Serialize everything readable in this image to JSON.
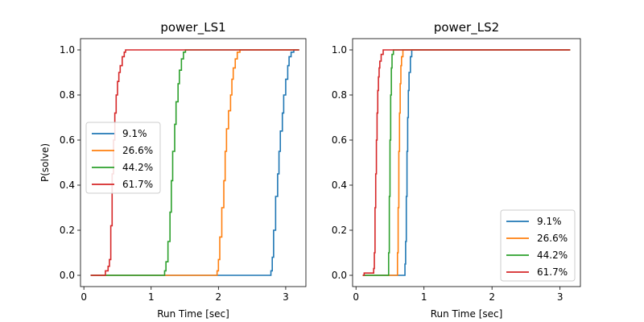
{
  "chart_data": [
    {
      "type": "line",
      "title": "power_LS1",
      "xlabel": "Run Time [sec]",
      "ylabel": "P(solve)",
      "xlim": [
        -0.05,
        3.3
      ],
      "ylim": [
        -0.05,
        1.05
      ],
      "xticks": [
        "0",
        "1",
        "2",
        "3"
      ],
      "yticks": [
        "0.0",
        "0.2",
        "0.4",
        "0.6",
        "0.8",
        "1.0"
      ],
      "legend_position": "center-left",
      "series": [
        {
          "name": "9.1%",
          "color": "#1f77b4",
          "x": [
            0.1,
            2.75,
            2.78,
            2.8,
            2.82,
            2.85,
            2.88,
            2.9,
            2.92,
            2.95,
            2.97,
            3.0,
            3.03,
            3.05,
            3.08,
            3.12,
            3.2
          ],
          "y": [
            0.0,
            0.0,
            0.02,
            0.08,
            0.2,
            0.35,
            0.45,
            0.55,
            0.64,
            0.72,
            0.8,
            0.87,
            0.93,
            0.97,
            0.99,
            1.0,
            1.0
          ]
        },
        {
          "name": "26.6%",
          "color": "#ff7f0e",
          "x": [
            0.1,
            1.95,
            1.98,
            2.0,
            2.02,
            2.05,
            2.08,
            2.1,
            2.12,
            2.15,
            2.18,
            2.2,
            2.22,
            2.25,
            2.28,
            2.32,
            3.2
          ],
          "y": [
            0.0,
            0.0,
            0.02,
            0.07,
            0.17,
            0.3,
            0.42,
            0.55,
            0.65,
            0.73,
            0.8,
            0.87,
            0.92,
            0.96,
            0.99,
            1.0,
            1.0
          ]
        },
        {
          "name": "44.2%",
          "color": "#2ca02c",
          "x": [
            0.1,
            1.17,
            1.2,
            1.22,
            1.25,
            1.28,
            1.3,
            1.32,
            1.35,
            1.37,
            1.4,
            1.42,
            1.45,
            1.48,
            1.51,
            3.2
          ],
          "y": [
            0.0,
            0.0,
            0.02,
            0.06,
            0.15,
            0.28,
            0.42,
            0.55,
            0.67,
            0.77,
            0.85,
            0.91,
            0.96,
            0.99,
            1.0,
            1.0
          ]
        },
        {
          "name": "61.7%",
          "color": "#d62728",
          "x": [
            0.1,
            0.3,
            0.32,
            0.36,
            0.38,
            0.4,
            0.42,
            0.44,
            0.46,
            0.48,
            0.5,
            0.52,
            0.54,
            0.57,
            0.6,
            0.62,
            3.2
          ],
          "y": [
            0.0,
            0.0,
            0.02,
            0.04,
            0.07,
            0.22,
            0.45,
            0.6,
            0.72,
            0.8,
            0.86,
            0.9,
            0.93,
            0.97,
            0.99,
            1.0,
            1.0
          ]
        }
      ]
    },
    {
      "type": "line",
      "title": "power_LS2",
      "xlabel": "Run Time [sec]",
      "ylabel": "",
      "xlim": [
        -0.05,
        3.3
      ],
      "ylim": [
        -0.05,
        1.05
      ],
      "xticks": [
        "0",
        "1",
        "2",
        "3"
      ],
      "yticks": [
        "0.0",
        "0.2",
        "0.4",
        "0.6",
        "0.8",
        "1.0"
      ],
      "legend_position": "lower-right",
      "series": [
        {
          "name": "9.1%",
          "color": "#1f77b4",
          "x": [
            0.1,
            0.7,
            0.72,
            0.73,
            0.74,
            0.75,
            0.76,
            0.77,
            0.78,
            0.8,
            0.82,
            3.15
          ],
          "y": [
            0.0,
            0.0,
            0.05,
            0.15,
            0.35,
            0.55,
            0.7,
            0.82,
            0.9,
            0.97,
            1.0,
            1.0
          ]
        },
        {
          "name": "26.6%",
          "color": "#ff7f0e",
          "x": [
            0.1,
            0.6,
            0.61,
            0.62,
            0.63,
            0.64,
            0.65,
            0.66,
            0.67,
            0.69,
            3.15
          ],
          "y": [
            0.0,
            0.0,
            0.1,
            0.3,
            0.55,
            0.72,
            0.85,
            0.93,
            0.97,
            1.0,
            1.0
          ]
        },
        {
          "name": "44.2%",
          "color": "#2ca02c",
          "x": [
            0.1,
            0.47,
            0.48,
            0.49,
            0.5,
            0.51,
            0.52,
            0.53,
            0.55,
            3.15
          ],
          "y": [
            0.0,
            0.0,
            0.1,
            0.35,
            0.6,
            0.8,
            0.92,
            0.98,
            1.0,
            1.0
          ]
        },
        {
          "name": "61.7%",
          "color": "#d62728",
          "x": [
            0.1,
            0.12,
            0.25,
            0.26,
            0.27,
            0.28,
            0.29,
            0.3,
            0.31,
            0.32,
            0.33,
            0.34,
            0.35,
            0.37,
            0.4,
            3.15
          ],
          "y": [
            0.0,
            0.01,
            0.01,
            0.03,
            0.1,
            0.3,
            0.45,
            0.6,
            0.72,
            0.82,
            0.88,
            0.92,
            0.95,
            0.98,
            1.0,
            1.0
          ]
        }
      ]
    }
  ]
}
